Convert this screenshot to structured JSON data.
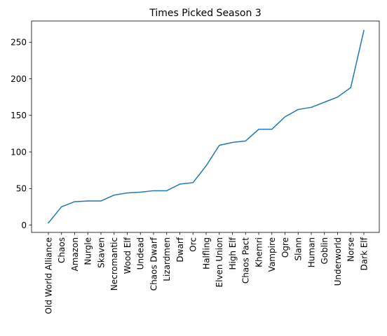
{
  "chart_data": {
    "type": "line",
    "title": "Times Picked Season 3",
    "xlabel": "",
    "ylabel": "",
    "categories": [
      "Old World Alliance",
      "Chaos",
      "Amazon",
      "Nurgle",
      "Skaven",
      "Necromantic",
      "Wood Elf",
      "Undead",
      "Chaos Dwarf",
      "Lizardmen",
      "Dwarf",
      "Orc",
      "Halfling",
      "Elven Union",
      "High Elf",
      "Chaos Pact",
      "Khemri",
      "Vampire",
      "Ogre",
      "Slann",
      "Human",
      "Goblin",
      "Underworld",
      "Norse",
      "Dark Elf"
    ],
    "series": [
      {
        "values": [
          3,
          25,
          32,
          33,
          33,
          41,
          44,
          45,
          47,
          47,
          56,
          58,
          81,
          109,
          113,
          115,
          131,
          131,
          148,
          158,
          161,
          168,
          175,
          188,
          266
        ]
      }
    ],
    "yticks": [
      0,
      50,
      100,
      150,
      200,
      250
    ],
    "ylim": [
      -10,
      279
    ],
    "grid": false,
    "legend": "none",
    "line_color": "#1f77b4"
  }
}
